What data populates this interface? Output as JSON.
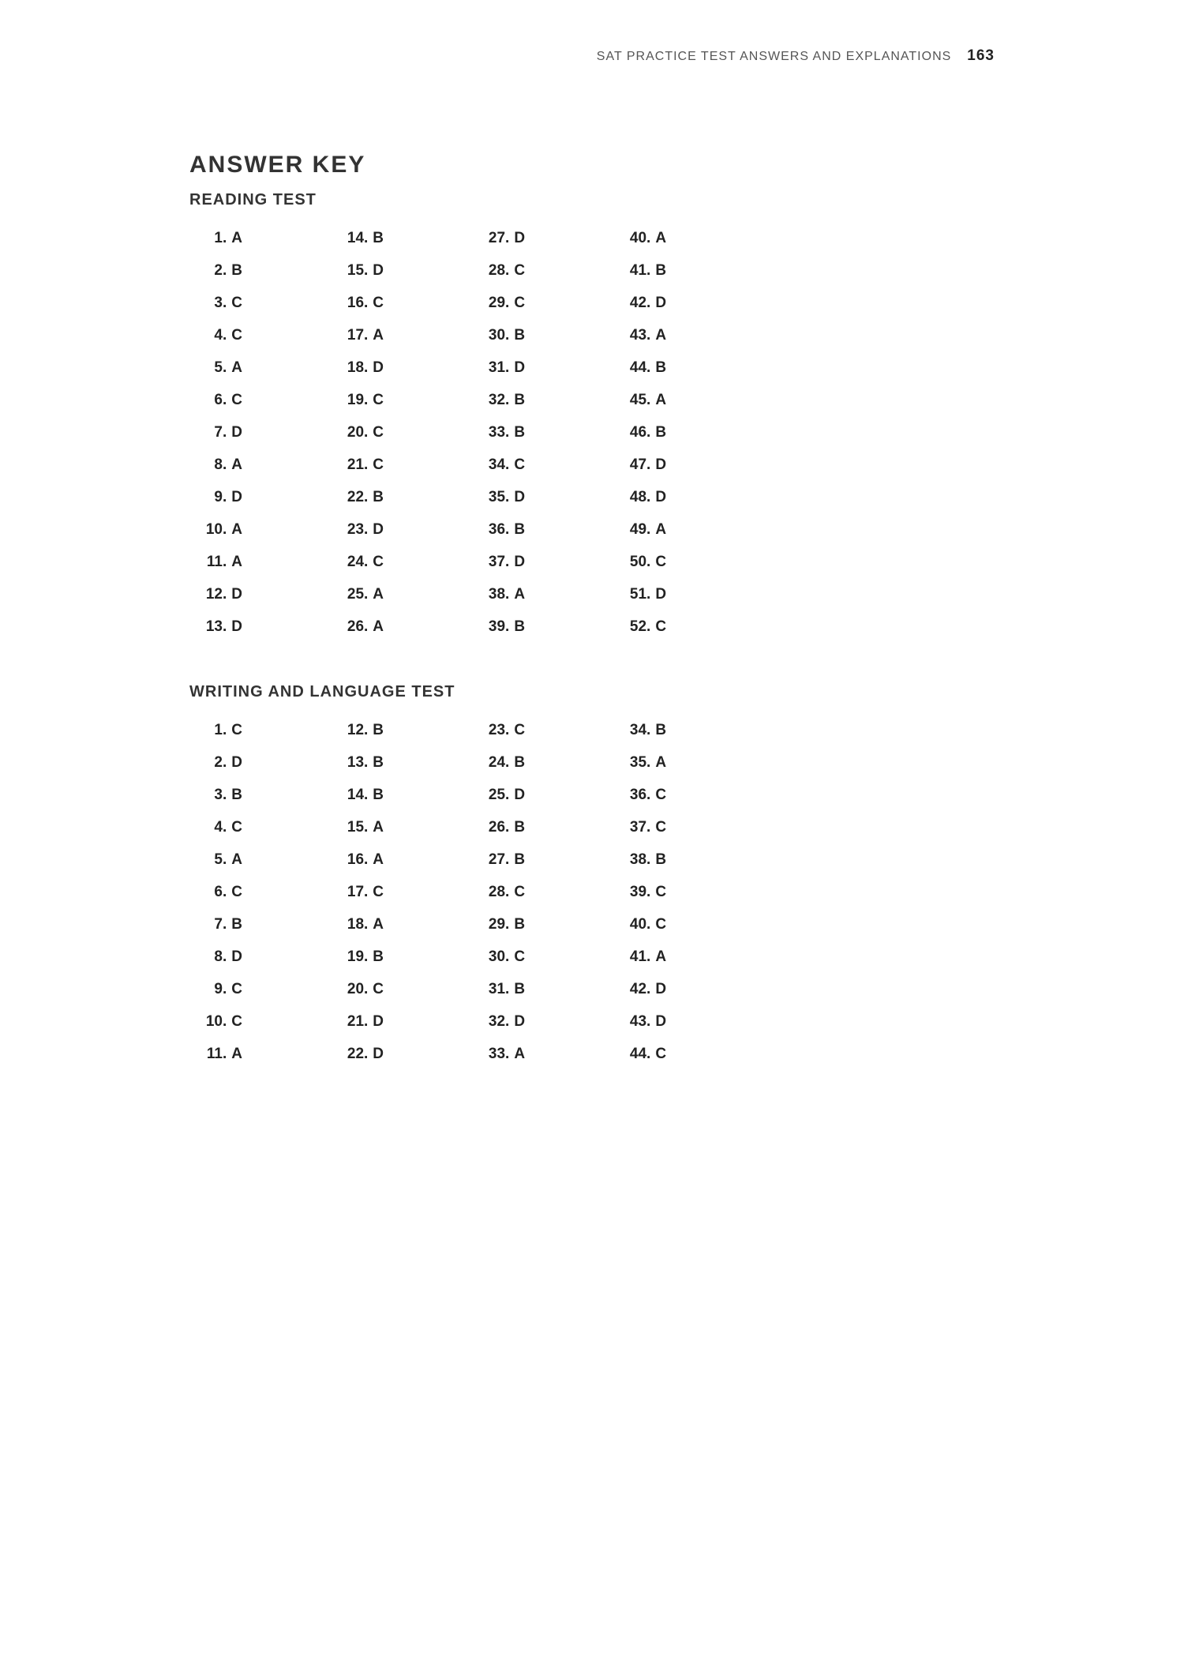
{
  "header": {
    "running_title": "SAT PRACTICE TEST ANSWERS AND EXPLANATIONS",
    "page_number": "163"
  },
  "title": "ANSWER KEY",
  "sections": [
    {
      "heading": "READING TEST",
      "columns": [
        [
          {
            "n": "1",
            "a": "A"
          },
          {
            "n": "2",
            "a": "B"
          },
          {
            "n": "3",
            "a": "C"
          },
          {
            "n": "4",
            "a": "C"
          },
          {
            "n": "5",
            "a": "A"
          },
          {
            "n": "6",
            "a": "C"
          },
          {
            "n": "7",
            "a": "D"
          },
          {
            "n": "8",
            "a": "A"
          },
          {
            "n": "9",
            "a": "D"
          },
          {
            "n": "10",
            "a": "A"
          },
          {
            "n": "11",
            "a": "A"
          },
          {
            "n": "12",
            "a": "D"
          },
          {
            "n": "13",
            "a": "D"
          }
        ],
        [
          {
            "n": "14",
            "a": "B"
          },
          {
            "n": "15",
            "a": "D"
          },
          {
            "n": "16",
            "a": "C"
          },
          {
            "n": "17",
            "a": "A"
          },
          {
            "n": "18",
            "a": "D"
          },
          {
            "n": "19",
            "a": "C"
          },
          {
            "n": "20",
            "a": "C"
          },
          {
            "n": "21",
            "a": "C"
          },
          {
            "n": "22",
            "a": "B"
          },
          {
            "n": "23",
            "a": "D"
          },
          {
            "n": "24",
            "a": "C"
          },
          {
            "n": "25",
            "a": "A"
          },
          {
            "n": "26",
            "a": "A"
          }
        ],
        [
          {
            "n": "27",
            "a": "D"
          },
          {
            "n": "28",
            "a": "C"
          },
          {
            "n": "29",
            "a": "C"
          },
          {
            "n": "30",
            "a": "B"
          },
          {
            "n": "31",
            "a": "D"
          },
          {
            "n": "32",
            "a": "B"
          },
          {
            "n": "33",
            "a": "B"
          },
          {
            "n": "34",
            "a": "C"
          },
          {
            "n": "35",
            "a": "D"
          },
          {
            "n": "36",
            "a": "B"
          },
          {
            "n": "37",
            "a": "D"
          },
          {
            "n": "38",
            "a": "A"
          },
          {
            "n": "39",
            "a": "B"
          }
        ],
        [
          {
            "n": "40",
            "a": "A"
          },
          {
            "n": "41",
            "a": "B"
          },
          {
            "n": "42",
            "a": "D"
          },
          {
            "n": "43",
            "a": "A"
          },
          {
            "n": "44",
            "a": "B"
          },
          {
            "n": "45",
            "a": "A"
          },
          {
            "n": "46",
            "a": "B"
          },
          {
            "n": "47",
            "a": "D"
          },
          {
            "n": "48",
            "a": "D"
          },
          {
            "n": "49",
            "a": "A"
          },
          {
            "n": "50",
            "a": "C"
          },
          {
            "n": "51",
            "a": "D"
          },
          {
            "n": "52",
            "a": "C"
          }
        ]
      ]
    },
    {
      "heading": "WRITING AND LANGUAGE TEST",
      "columns": [
        [
          {
            "n": "1",
            "a": "C"
          },
          {
            "n": "2",
            "a": "D"
          },
          {
            "n": "3",
            "a": "B"
          },
          {
            "n": "4",
            "a": "C"
          },
          {
            "n": "5",
            "a": "A"
          },
          {
            "n": "6",
            "a": "C"
          },
          {
            "n": "7",
            "a": "B"
          },
          {
            "n": "8",
            "a": "D"
          },
          {
            "n": "9",
            "a": "C"
          },
          {
            "n": "10",
            "a": "C"
          },
          {
            "n": "11",
            "a": "A"
          }
        ],
        [
          {
            "n": "12",
            "a": "B"
          },
          {
            "n": "13",
            "a": "B"
          },
          {
            "n": "14",
            "a": "B"
          },
          {
            "n": "15",
            "a": "A"
          },
          {
            "n": "16",
            "a": "A"
          },
          {
            "n": "17",
            "a": "C"
          },
          {
            "n": "18",
            "a": "A"
          },
          {
            "n": "19",
            "a": "B"
          },
          {
            "n": "20",
            "a": "C"
          },
          {
            "n": "21",
            "a": "D"
          },
          {
            "n": "22",
            "a": "D"
          }
        ],
        [
          {
            "n": "23",
            "a": "C"
          },
          {
            "n": "24",
            "a": "B"
          },
          {
            "n": "25",
            "a": "D"
          },
          {
            "n": "26",
            "a": "B"
          },
          {
            "n": "27",
            "a": "B"
          },
          {
            "n": "28",
            "a": "C"
          },
          {
            "n": "29",
            "a": "B"
          },
          {
            "n": "30",
            "a": "C"
          },
          {
            "n": "31",
            "a": "B"
          },
          {
            "n": "32",
            "a": "D"
          },
          {
            "n": "33",
            "a": "A"
          }
        ],
        [
          {
            "n": "34",
            "a": "B"
          },
          {
            "n": "35",
            "a": "A"
          },
          {
            "n": "36",
            "a": "C"
          },
          {
            "n": "37",
            "a": "C"
          },
          {
            "n": "38",
            "a": "B"
          },
          {
            "n": "39",
            "a": "C"
          },
          {
            "n": "40",
            "a": "C"
          },
          {
            "n": "41",
            "a": "A"
          },
          {
            "n": "42",
            "a": "D"
          },
          {
            "n": "43",
            "a": "D"
          },
          {
            "n": "44",
            "a": "C"
          }
        ]
      ]
    }
  ]
}
